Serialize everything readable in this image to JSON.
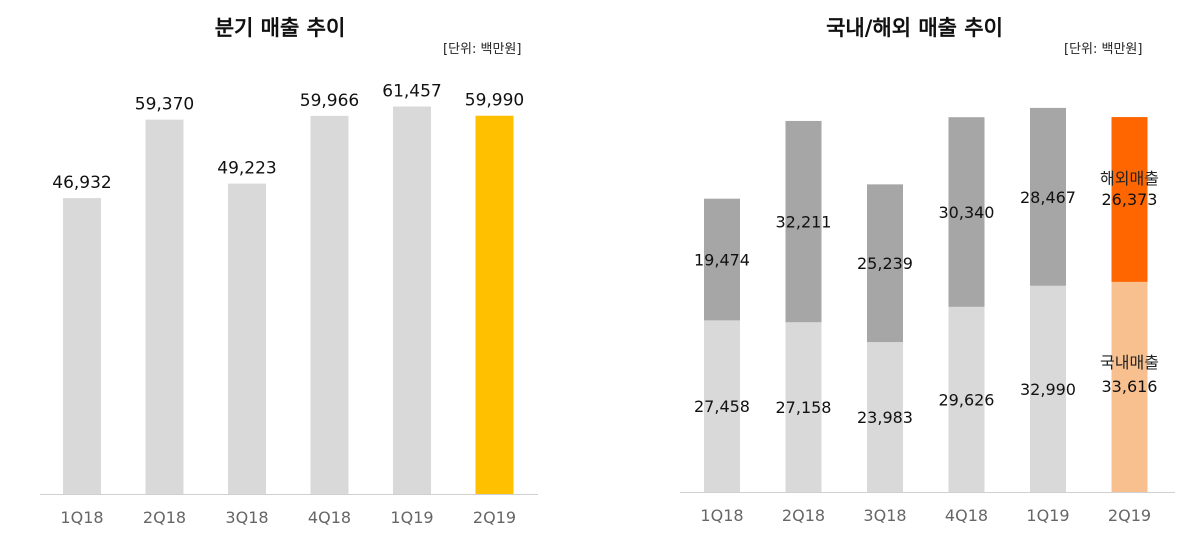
{
  "chart_data": [
    {
      "type": "bar",
      "title": "분기 매출 추이",
      "unit": "[단위: 백만원]",
      "categories": [
        "1Q18",
        "2Q18",
        "3Q18",
        "4Q18",
        "1Q19",
        "2Q19"
      ],
      "values": [
        46932,
        59370,
        49223,
        59966,
        61457,
        59990
      ],
      "value_labels": [
        "46,932",
        "59,370",
        "49,223",
        "59,966",
        "61,457",
        "59,990"
      ],
      "ylim": [
        0,
        72000
      ],
      "grid": false,
      "colors": {
        "default": "#d9d9d9",
        "highlight": "#ffc000"
      },
      "highlight_index": 5
    },
    {
      "type": "bar",
      "stacked": true,
      "title": "국내/해외 매출 추이",
      "unit": "[단위: 백만원]",
      "categories": [
        "1Q18",
        "2Q18",
        "3Q18",
        "4Q18",
        "1Q19",
        "2Q19"
      ],
      "series": [
        {
          "name": "국내매출",
          "values": [
            27458,
            27158,
            23983,
            29626,
            32990,
            33616
          ],
          "value_labels": [
            "27,458",
            "27,158",
            "23,983",
            "29,626",
            "32,990",
            "33,616"
          ],
          "color": "#d9d9d9",
          "highlight_color": "#f8c08f"
        },
        {
          "name": "해외매출",
          "values": [
            19474,
            32211,
            25239,
            30340,
            28467,
            26373
          ],
          "value_labels": [
            "19,474",
            "32,211",
            "25,239",
            "30,340",
            "28,467",
            "26,373"
          ],
          "color": "#a6a6a6",
          "highlight_color": "#ff6600"
        }
      ],
      "ylim": [
        0,
        72000
      ],
      "grid": false,
      "highlight_index": 5
    }
  ]
}
